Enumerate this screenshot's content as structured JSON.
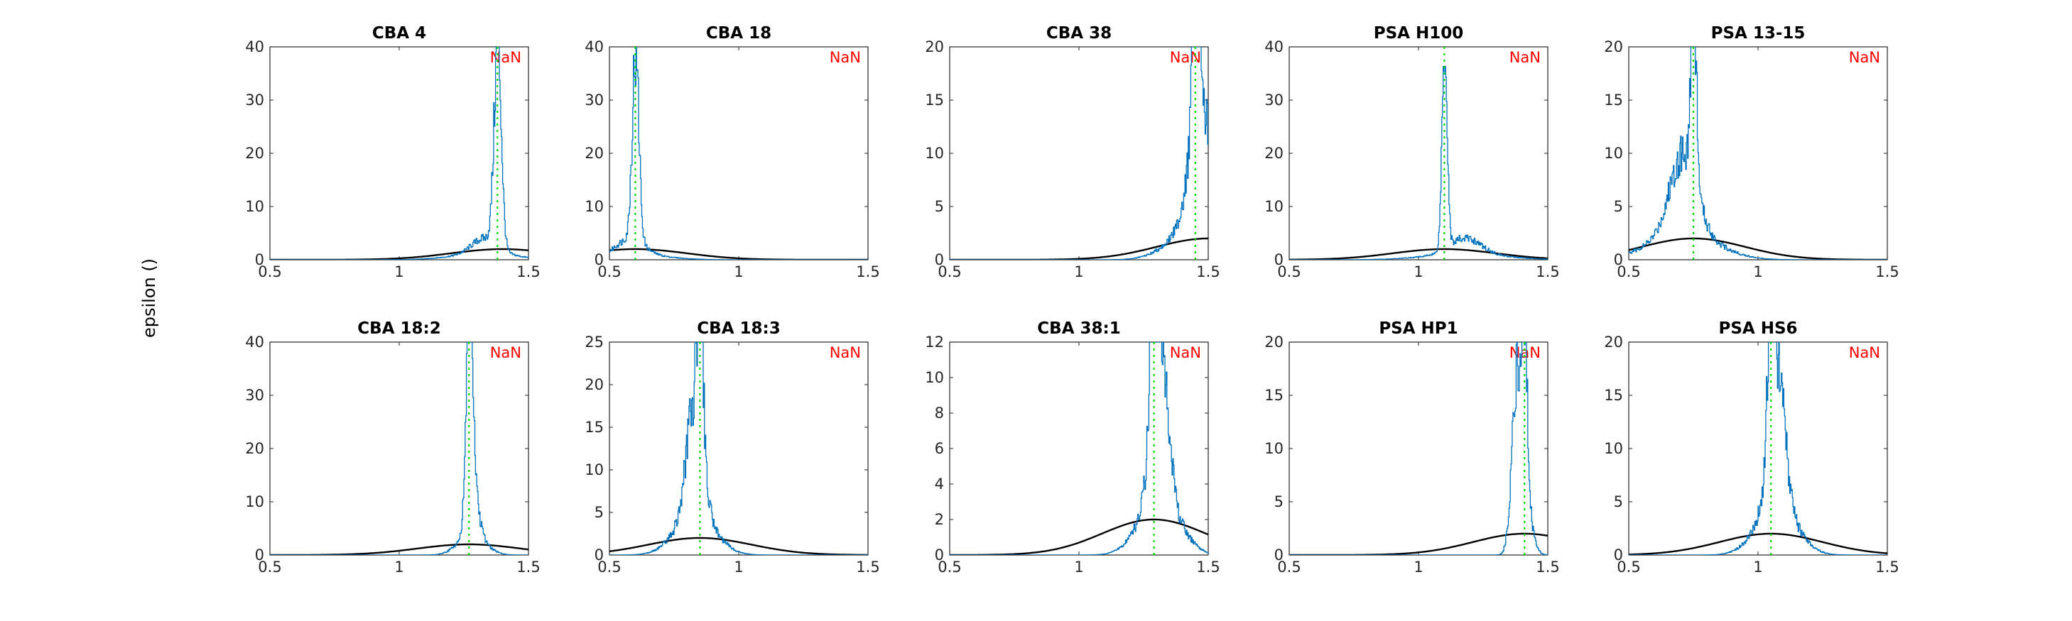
{
  "figure": {
    "ylabel": "epsilon ()",
    "annotation_color": "#ff0000",
    "hist_color": "#0072bd",
    "gauss_color": "#000000",
    "marker_color": "#00dd00"
  },
  "chart_data": [
    {
      "type": "histogram-line",
      "title": "CBA 4",
      "annotation": "NaN",
      "xlim": [
        0.5,
        1.5
      ],
      "ylim": [
        0,
        40
      ],
      "xticks": [
        0.5,
        1,
        1.5
      ],
      "xticklabels": [
        "0.5",
        "1",
        "1.5"
      ],
      "yticks": [
        0,
        10,
        20,
        30,
        40
      ],
      "peak_center": 1.38,
      "peak_height": 38,
      "peak_width": 0.014,
      "broad_center": 1.33,
      "broad_height": 3,
      "broad_width": 0.05,
      "gauss_mu": 1.4,
      "gauss_sigma": 0.2,
      "gauss_amp": 2,
      "vline_x": 1.38
    },
    {
      "type": "histogram-line",
      "title": "CBA 18",
      "annotation": "NaN",
      "xlim": [
        0.5,
        1.5
      ],
      "ylim": [
        0,
        40
      ],
      "xticks": [
        0.5,
        1,
        1.5
      ],
      "xticklabels": [
        "0.5",
        "1",
        "1.5"
      ],
      "yticks": [
        0,
        10,
        20,
        30,
        40
      ],
      "peak_center": 0.6,
      "peak_height": 35,
      "peak_width": 0.013,
      "broad_center": 0.58,
      "broad_height": 3,
      "broad_width": 0.05,
      "gauss_mu": 0.6,
      "gauss_sigma": 0.2,
      "gauss_amp": 2,
      "vline_x": 0.6
    },
    {
      "type": "histogram-line",
      "title": "CBA 38",
      "annotation": "NaN",
      "xlim": [
        0.5,
        1.5
      ],
      "ylim": [
        0,
        20
      ],
      "xticks": [
        0.5,
        1,
        1.5
      ],
      "xticklabels": [
        "0.5",
        "1",
        "1.5"
      ],
      "yticks": [
        0,
        5,
        10,
        15,
        20
      ],
      "peak_center": 1.45,
      "peak_height": 19,
      "peak_width": 0.012,
      "broad_center": 1.47,
      "broad_height": 11,
      "broad_width": 0.04,
      "gauss_mu": 1.5,
      "gauss_sigma": 0.2,
      "gauss_amp": 2,
      "vline_x": 1.45
    },
    {
      "type": "histogram-line",
      "title": "PSA H100",
      "annotation": "NaN",
      "xlim": [
        0.5,
        1.5
      ],
      "ylim": [
        0,
        40
      ],
      "xticks": [
        0.5,
        1,
        1.5
      ],
      "xticklabels": [
        "0.5",
        "1",
        "1.5"
      ],
      "yticks": [
        0,
        10,
        20,
        30,
        40
      ],
      "peak_center": 1.1,
      "peak_height": 39,
      "peak_width": 0.01,
      "broad_center": 1.18,
      "broad_height": 3,
      "broad_width": 0.06,
      "gauss_mu": 1.1,
      "gauss_sigma": 0.2,
      "gauss_amp": 2,
      "vline_x": 1.1
    },
    {
      "type": "histogram-line",
      "title": "PSA 13-15",
      "annotation": "NaN",
      "xlim": [
        0.5,
        1.5
      ],
      "ylim": [
        0,
        20
      ],
      "xticks": [
        0.5,
        1,
        1.5
      ],
      "xticklabels": [
        "0.5",
        "1",
        "1.5"
      ],
      "yticks": [
        0,
        5,
        10,
        15,
        20
      ],
      "peak_center": 0.75,
      "peak_height": 19,
      "peak_width": 0.01,
      "broad_center": 0.71,
      "broad_height": 7.5,
      "broad_width": 0.05,
      "gauss_mu": 0.75,
      "gauss_sigma": 0.2,
      "gauss_amp": 2,
      "vline_x": 0.75
    },
    {
      "type": "histogram-line",
      "title": "CBA 18:2",
      "annotation": "NaN",
      "xlim": [
        0.5,
        1.5
      ],
      "ylim": [
        0,
        40
      ],
      "xticks": [
        0.5,
        1,
        1.5
      ],
      "xticklabels": [
        "0.5",
        "1",
        "1.5"
      ],
      "yticks": [
        0,
        10,
        20,
        30,
        40
      ],
      "peak_center": 1.27,
      "peak_height": 38,
      "peak_width": 0.011,
      "broad_center": 1.28,
      "broad_height": 12,
      "broad_width": 0.02,
      "gauss_mu": 1.27,
      "gauss_sigma": 0.2,
      "gauss_amp": 2,
      "vline_x": 1.27
    },
    {
      "type": "histogram-line",
      "title": "CBA 18:3",
      "annotation": "NaN",
      "xlim": [
        0.5,
        1.5
      ],
      "ylim": [
        0,
        25
      ],
      "xticks": [
        0.5,
        1,
        1.5
      ],
      "xticklabels": [
        "0.5",
        "1",
        "1.5"
      ],
      "yticks": [
        0,
        5,
        10,
        15,
        20,
        25
      ],
      "peak_center": 0.85,
      "peak_height": 20,
      "peak_width": 0.01,
      "broad_center": 0.83,
      "broad_height": 14,
      "broad_width": 0.03,
      "gauss_mu": 0.85,
      "gauss_sigma": 0.2,
      "gauss_amp": 2,
      "vline_x": 0.85
    },
    {
      "type": "histogram-line",
      "title": "CBA 38:1",
      "annotation": "NaN",
      "xlim": [
        0.5,
        1.5
      ],
      "ylim": [
        0,
        12
      ],
      "xticks": [
        0.5,
        1,
        1.5
      ],
      "xticklabels": [
        "0.5",
        "1",
        "1.5"
      ],
      "yticks": [
        0,
        2,
        4,
        6,
        8,
        10,
        12
      ],
      "peak_center": 1.29,
      "peak_height": 11.5,
      "peak_width": 0.012,
      "broad_center": 1.31,
      "broad_height": 9.5,
      "broad_width": 0.03,
      "gauss_mu": 1.29,
      "gauss_sigma": 0.2,
      "gauss_amp": 2,
      "vline_x": 1.29
    },
    {
      "type": "histogram-line",
      "title": "PSA HP1",
      "annotation": "NaN",
      "xlim": [
        0.5,
        1.5
      ],
      "ylim": [
        0,
        20
      ],
      "xticks": [
        0.5,
        1,
        1.5
      ],
      "xticklabels": [
        "0.5",
        "1",
        "1.5"
      ],
      "yticks": [
        0,
        5,
        10,
        15,
        20
      ],
      "peak_center": 1.38,
      "peak_height": 15,
      "peak_width": 0.02,
      "broad_center": 1.41,
      "broad_height": 14,
      "broad_width": 0.01,
      "gauss_mu": 1.41,
      "gauss_sigma": 0.2,
      "gauss_amp": 2,
      "vline_x": 1.41
    },
    {
      "type": "histogram-line",
      "title": "PSA HS6",
      "annotation": "NaN",
      "xlim": [
        0.5,
        1.5
      ],
      "ylim": [
        0,
        20
      ],
      "xticks": [
        0.5,
        1,
        1.5
      ],
      "xticklabels": [
        "0.5",
        "1",
        "1.5"
      ],
      "yticks": [
        0,
        5,
        10,
        15,
        20
      ],
      "peak_center": 1.05,
      "peak_height": 17,
      "peak_width": 0.01,
      "broad_center": 1.07,
      "broad_height": 13.5,
      "broad_width": 0.03,
      "gauss_mu": 1.05,
      "gauss_sigma": 0.2,
      "gauss_amp": 2,
      "vline_x": 1.05
    }
  ]
}
